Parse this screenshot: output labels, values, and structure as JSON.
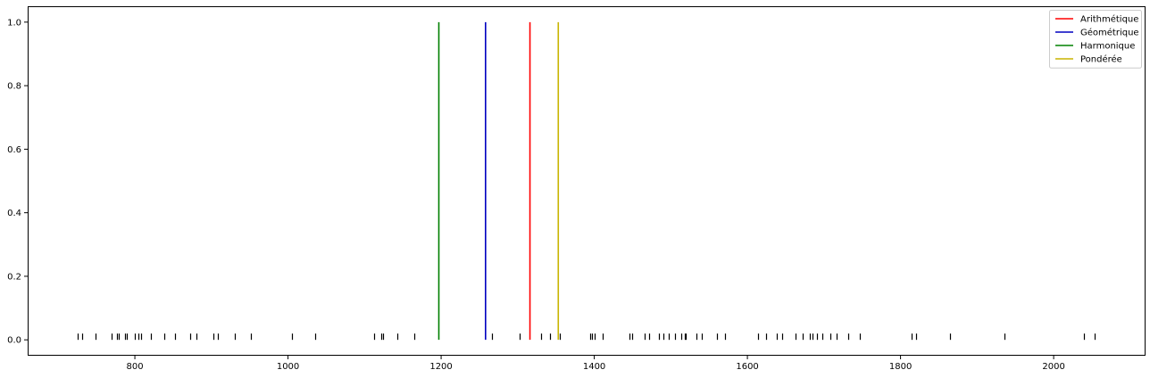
{
  "chart_data": {
    "type": "line",
    "title": "",
    "xlabel": "",
    "ylabel": "",
    "xlim": [
      660,
      2120
    ],
    "ylim": [
      -0.05,
      1.05
    ],
    "x_ticks": [
      800,
      1000,
      1200,
      1400,
      1600,
      1800,
      2000
    ],
    "y_ticks": [
      0.0,
      0.2,
      0.4,
      0.6,
      0.8,
      1.0
    ],
    "x_tick_labels": [
      "800",
      "1000",
      "1200",
      "1400",
      "1600",
      "1800",
      "2000"
    ],
    "y_tick_labels": [
      "0.0",
      "0.2",
      "0.4",
      "0.6",
      "0.8",
      "1.0"
    ],
    "grid": false,
    "legend_position": "top-right",
    "series": [
      {
        "name": "Arithmétique",
        "x": [
          1316,
          1316
        ],
        "y": [
          0,
          1
        ],
        "color": "#ff0000"
      },
      {
        "name": "Géométrique",
        "x": [
          1258,
          1258
        ],
        "y": [
          0,
          1
        ],
        "color": "#0000c0"
      },
      {
        "name": "Harmonique",
        "x": [
          1197,
          1197
        ],
        "y": [
          0,
          1
        ],
        "color": "#008000"
      },
      {
        "name": "Pondérée",
        "x": [
          1353,
          1353
        ],
        "y": [
          0,
          1
        ],
        "color": "#c8b400"
      }
    ],
    "rug": {
      "y": 0,
      "color": "#000000",
      "x": [
        725,
        731,
        749,
        770,
        777,
        779,
        787,
        790,
        800,
        805,
        808,
        821,
        839,
        852,
        872,
        880,
        902,
        908,
        931,
        952,
        1005,
        1036,
        1113,
        1122,
        1124,
        1143,
        1165,
        1266,
        1302,
        1330,
        1342,
        1355,
        1395,
        1397,
        1400,
        1411,
        1446,
        1449,
        1466,
        1472,
        1485,
        1490,
        1497,
        1505,
        1514,
        1518,
        1520,
        1533,
        1541,
        1560,
        1571,
        1614,
        1624,
        1638,
        1645,
        1663,
        1672,
        1682,
        1685,
        1691,
        1698,
        1708,
        1716,
        1732,
        1747,
        1814,
        1820,
        1865,
        1936,
        2039,
        2054
      ]
    }
  }
}
